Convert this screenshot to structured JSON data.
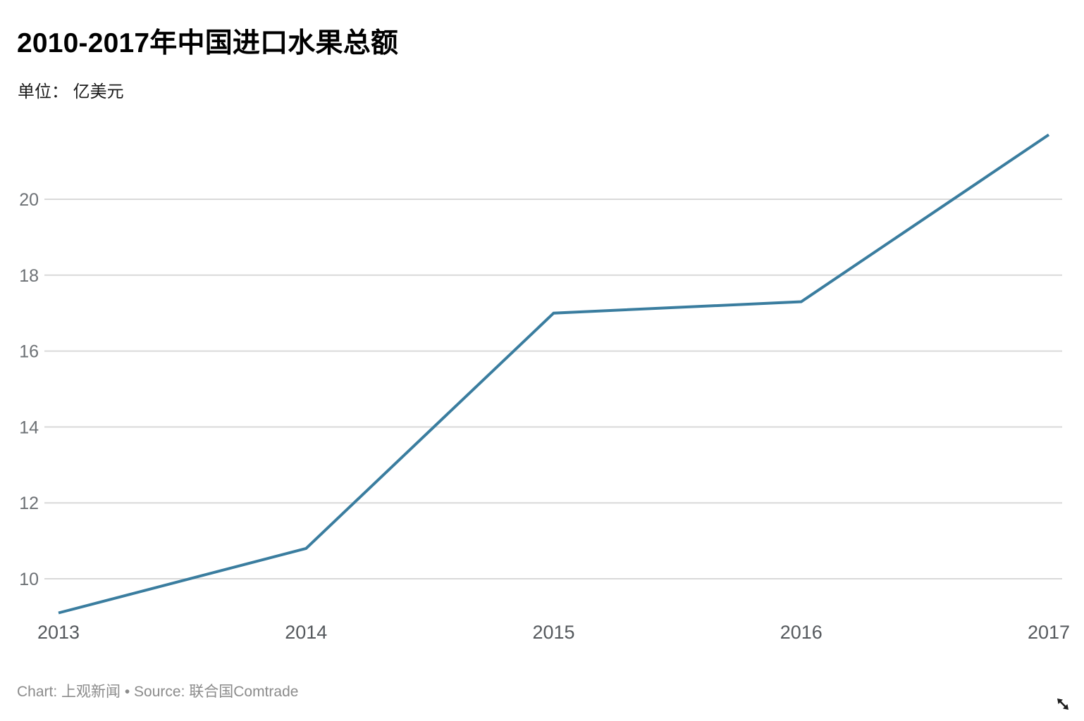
{
  "header": {
    "title": "2010-2017年中国进口水果总额",
    "subtitle": "单位： 亿美元"
  },
  "chart_data": {
    "type": "line",
    "categories": [
      "2013",
      "2014",
      "2015",
      "2016",
      "2017"
    ],
    "values": [
      9.1,
      10.8,
      17.0,
      17.3,
      21.7
    ],
    "series_name": "进口水果总额",
    "title": "2010-2017年中国进口水果总额",
    "xlabel": "",
    "ylabel": "亿美元",
    "yticks": [
      10,
      12,
      14,
      16,
      18,
      20
    ],
    "ylim": [
      9.0,
      21.8
    ],
    "grid": "horizontal-only",
    "legend": "none",
    "line_color": "#3a7d9f",
    "gridline_color": "#d9d9d9",
    "ytick_label_color": "#6d7175",
    "xtick_label_color": "#55595d"
  },
  "footer": {
    "attribution": "Chart: 上观新闻 • Source: 联合国Comtrade"
  },
  "icons": {
    "resize_handle": "nwse-resize-arrow"
  }
}
